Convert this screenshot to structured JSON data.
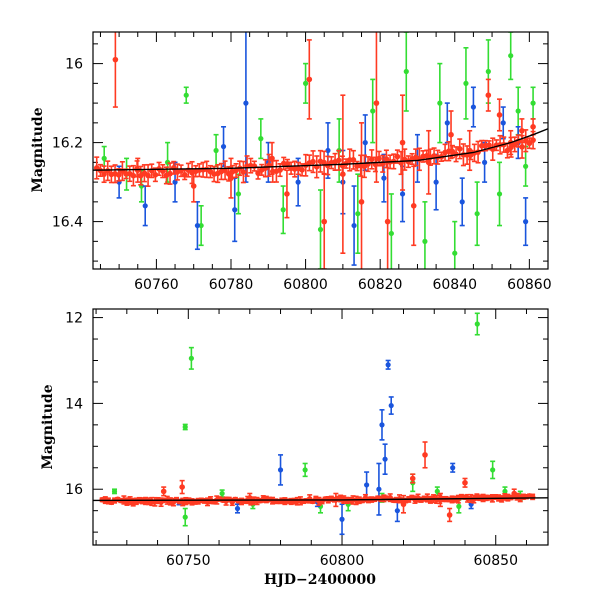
{
  "colors": {
    "green": "#33dd33",
    "blue": "#1a55dd",
    "red": "#ff3a22",
    "model": "#000000"
  },
  "chart_data": [
    {
      "type": "scatter",
      "name": "top-panel",
      "ylabel": "Magnitude",
      "xlabel": "",
      "xlim": [
        60743,
        60865
      ],
      "ylim": [
        16.52,
        15.92
      ],
      "y_inverted": true,
      "xticks": [
        60760,
        60780,
        60800,
        60820,
        60840,
        60860
      ],
      "yticks": [
        16,
        16.2,
        16.4
      ],
      "xtick_labels": [
        "60760",
        "60780",
        "60800",
        "60820",
        "60840",
        "60860"
      ],
      "ytick_labels": [
        "16",
        "16.2",
        "16.4"
      ],
      "model_curve": {
        "x": [
          60743,
          60780,
          60810,
          60830,
          60845,
          60855,
          60861,
          60865
        ],
        "y": [
          16.27,
          16.265,
          16.255,
          16.245,
          16.225,
          16.2,
          16.18,
          16.165
        ]
      },
      "series": [
        {
          "color_key": "green",
          "points": [
            {
              "x": 60746,
              "y": 16.24,
              "e": 0.03
            },
            {
              "x": 60752,
              "y": 16.28,
              "e": 0.04
            },
            {
              "x": 60756,
              "y": 16.31,
              "e": 0.04
            },
            {
              "x": 60763,
              "y": 16.25,
              "e": 0.05
            },
            {
              "x": 60768,
              "y": 16.08,
              "e": 0.02
            },
            {
              "x": 60772,
              "y": 16.41,
              "e": 0.05
            },
            {
              "x": 60776,
              "y": 16.22,
              "e": 0.04
            },
            {
              "x": 60782,
              "y": 16.33,
              "e": 0.05
            },
            {
              "x": 60788,
              "y": 16.19,
              "e": 0.05
            },
            {
              "x": 60794,
              "y": 16.37,
              "e": 0.06
            },
            {
              "x": 60800,
              "y": 16.05,
              "e": 0.05
            },
            {
              "x": 60804,
              "y": 16.42,
              "e": 0.1
            },
            {
              "x": 60809,
              "y": 16.22,
              "e": 0.08
            },
            {
              "x": 60814,
              "y": 16.38,
              "e": 0.1
            },
            {
              "x": 60818,
              "y": 16.12,
              "e": 0.08
            },
            {
              "x": 60823,
              "y": 16.43,
              "e": 0.1
            },
            {
              "x": 60827,
              "y": 16.02,
              "e": 0.1
            },
            {
              "x": 60832,
              "y": 16.45,
              "e": 0.1
            },
            {
              "x": 60836,
              "y": 16.1,
              "e": 0.1
            },
            {
              "x": 60840,
              "y": 16.48,
              "e": 0.08
            },
            {
              "x": 60843,
              "y": 16.05,
              "e": 0.09
            },
            {
              "x": 60846,
              "y": 16.38,
              "e": 0.08
            },
            {
              "x": 60849,
              "y": 16.02,
              "e": 0.08
            },
            {
              "x": 60852,
              "y": 16.33,
              "e": 0.08
            },
            {
              "x": 60855,
              "y": 15.98,
              "e": 0.06
            },
            {
              "x": 60857,
              "y": 16.12,
              "e": 0.06
            },
            {
              "x": 60859,
              "y": 16.26,
              "e": 0.05
            },
            {
              "x": 60861,
              "y": 16.1,
              "e": 0.04
            }
          ]
        },
        {
          "color_key": "blue",
          "points": [
            {
              "x": 60750,
              "y": 16.3,
              "e": 0.04
            },
            {
              "x": 60757,
              "y": 16.36,
              "e": 0.05
            },
            {
              "x": 60765,
              "y": 16.3,
              "e": 0.05
            },
            {
              "x": 60771,
              "y": 16.41,
              "e": 0.06
            },
            {
              "x": 60778,
              "y": 16.21,
              "e": 0.05
            },
            {
              "x": 60781,
              "y": 16.37,
              "e": 0.08
            },
            {
              "x": 60784,
              "y": 16.1,
              "e": 0.2
            },
            {
              "x": 60790,
              "y": 16.25,
              "e": 0.05
            },
            {
              "x": 60798,
              "y": 16.3,
              "e": 0.06
            },
            {
              "x": 60806,
              "y": 16.22,
              "e": 0.07
            },
            {
              "x": 60810,
              "y": 16.3,
              "e": 0.08
            },
            {
              "x": 60813,
              "y": 16.41,
              "e": 0.1
            },
            {
              "x": 60816,
              "y": 16.2,
              "e": 0.07
            },
            {
              "x": 60821,
              "y": 16.29,
              "e": 0.06
            },
            {
              "x": 60826,
              "y": 16.33,
              "e": 0.07
            },
            {
              "x": 60830,
              "y": 16.24,
              "e": 0.06
            },
            {
              "x": 60835,
              "y": 16.3,
              "e": 0.07
            },
            {
              "x": 60838,
              "y": 16.15,
              "e": 0.05
            },
            {
              "x": 60842,
              "y": 16.35,
              "e": 0.06
            },
            {
              "x": 60845,
              "y": 16.11,
              "e": 0.05
            },
            {
              "x": 60848,
              "y": 16.25,
              "e": 0.05
            },
            {
              "x": 60853,
              "y": 16.15,
              "e": 0.04
            },
            {
              "x": 60857,
              "y": 16.2,
              "e": 0.04
            },
            {
              "x": 60859,
              "y": 16.4,
              "e": 0.06
            }
          ]
        },
        {
          "color_key": "red",
          "points": [
            {
              "x": 60749,
              "y": 15.99,
              "e": 0.12
            },
            {
              "x": 60755,
              "y": 16.27,
              "e": 0.03
            },
            {
              "x": 60770,
              "y": 16.31,
              "e": 0.04
            },
            {
              "x": 60780,
              "y": 16.29,
              "e": 0.05
            },
            {
              "x": 60791,
              "y": 16.24,
              "e": 0.04
            },
            {
              "x": 60795,
              "y": 16.33,
              "e": 0.06
            },
            {
              "x": 60801,
              "y": 16.04,
              "e": 0.1
            },
            {
              "x": 60805,
              "y": 16.4,
              "e": 0.12
            },
            {
              "x": 60810,
              "y": 16.28,
              "e": 0.2
            },
            {
              "x": 60815,
              "y": 16.35,
              "e": 0.2
            },
            {
              "x": 60819,
              "y": 16.1,
              "e": 0.2
            },
            {
              "x": 60822,
              "y": 16.4,
              "e": 0.15
            },
            {
              "x": 60826,
              "y": 16.2,
              "e": 0.12
            },
            {
              "x": 60829,
              "y": 16.36,
              "e": 0.1
            },
            {
              "x": 60833,
              "y": 16.25,
              "e": 0.08
            },
            {
              "x": 60839,
              "y": 16.18,
              "e": 0.06
            },
            {
              "x": 60844,
              "y": 16.22,
              "e": 0.05
            },
            {
              "x": 60849,
              "y": 16.08,
              "e": 0.04
            },
            {
              "x": 60852,
              "y": 16.13,
              "e": 0.04
            },
            {
              "x": 60855,
              "y": 16.2,
              "e": 0.03
            },
            {
              "x": 60858,
              "y": 16.17,
              "e": 0.03
            },
            {
              "x": 60861,
              "y": 16.16,
              "e": 0.02
            }
          ]
        }
      ],
      "dense_band": {
        "color_key": "red",
        "x_start": 60744,
        "x_end": 60861,
        "y_start": 16.275,
        "y_end": 16.2,
        "err": 0.018,
        "count": 120
      }
    },
    {
      "type": "scatter",
      "name": "bottom-panel",
      "ylabel": "Magnitude",
      "xlabel": "HJD−2400000",
      "xlim": [
        60719,
        60867
      ],
      "ylim": [
        17.3,
        11.8
      ],
      "y_inverted": true,
      "xticks": [
        60750,
        60800,
        60850
      ],
      "yticks": [
        12,
        14,
        16
      ],
      "xtick_labels": [
        "60750",
        "60800",
        "60850"
      ],
      "ytick_labels": [
        "12",
        "14",
        "16"
      ],
      "model_curve": {
        "x": [
          60719,
          60800,
          60867
        ],
        "y": [
          16.26,
          16.25,
          16.2
        ]
      },
      "series": [
        {
          "color_key": "green",
          "points": [
            {
              "x": 60726,
              "y": 16.05,
              "e": 0.05
            },
            {
              "x": 60749,
              "y": 14.55,
              "e": 0.06
            },
            {
              "x": 60749,
              "y": 16.65,
              "e": 0.2
            },
            {
              "x": 60751,
              "y": 12.95,
              "e": 0.25
            },
            {
              "x": 60761,
              "y": 16.1,
              "e": 0.08
            },
            {
              "x": 60771,
              "y": 16.35,
              "e": 0.1
            },
            {
              "x": 60788,
              "y": 15.55,
              "e": 0.15
            },
            {
              "x": 60793,
              "y": 16.4,
              "e": 0.15
            },
            {
              "x": 60802,
              "y": 16.35,
              "e": 0.15
            },
            {
              "x": 60813,
              "y": 16.2,
              "e": 0.1
            },
            {
              "x": 60823,
              "y": 15.85,
              "e": 0.2
            },
            {
              "x": 60831,
              "y": 16.05,
              "e": 0.1
            },
            {
              "x": 60838,
              "y": 16.4,
              "e": 0.15
            },
            {
              "x": 60844,
              "y": 12.15,
              "e": 0.25
            },
            {
              "x": 60849,
              "y": 15.55,
              "e": 0.2
            },
            {
              "x": 60853,
              "y": 16.05,
              "e": 0.1
            },
            {
              "x": 60858,
              "y": 16.15,
              "e": 0.1
            }
          ]
        },
        {
          "color_key": "blue",
          "points": [
            {
              "x": 60747,
              "y": 16.3,
              "e": 0.06
            },
            {
              "x": 60766,
              "y": 16.45,
              "e": 0.1
            },
            {
              "x": 60780,
              "y": 15.55,
              "e": 0.35
            },
            {
              "x": 60792,
              "y": 16.3,
              "e": 0.1
            },
            {
              "x": 60800,
              "y": 16.7,
              "e": 0.35
            },
            {
              "x": 60808,
              "y": 15.9,
              "e": 0.3
            },
            {
              "x": 60812,
              "y": 16.0,
              "e": 0.6
            },
            {
              "x": 60813,
              "y": 14.5,
              "e": 0.35
            },
            {
              "x": 60814,
              "y": 15.3,
              "e": 0.35
            },
            {
              "x": 60815,
              "y": 13.1,
              "e": 0.1
            },
            {
              "x": 60816,
              "y": 14.05,
              "e": 0.2
            },
            {
              "x": 60818,
              "y": 16.5,
              "e": 0.25
            },
            {
              "x": 60836,
              "y": 15.5,
              "e": 0.1
            },
            {
              "x": 60842,
              "y": 16.35,
              "e": 0.1
            }
          ]
        },
        {
          "color_key": "red",
          "points": [
            {
              "x": 60742,
              "y": 16.05,
              "e": 0.1
            },
            {
              "x": 60748,
              "y": 15.95,
              "e": 0.15
            },
            {
              "x": 60770,
              "y": 16.2,
              "e": 0.1
            },
            {
              "x": 60798,
              "y": 16.25,
              "e": 0.15
            },
            {
              "x": 60820,
              "y": 16.35,
              "e": 0.2
            },
            {
              "x": 60823,
              "y": 15.75,
              "e": 0.1
            },
            {
              "x": 60827,
              "y": 15.2,
              "e": 0.3
            },
            {
              "x": 60832,
              "y": 16.25,
              "e": 0.15
            },
            {
              "x": 60835,
              "y": 16.6,
              "e": 0.15
            },
            {
              "x": 60840,
              "y": 15.85,
              "e": 0.1
            },
            {
              "x": 60856,
              "y": 16.1,
              "e": 0.1
            }
          ]
        }
      ],
      "dense_band": {
        "color_key": "red",
        "x_start": 60722,
        "x_end": 60862,
        "y_start": 16.27,
        "y_end": 16.18,
        "err": 0.06,
        "count": 140
      }
    }
  ]
}
